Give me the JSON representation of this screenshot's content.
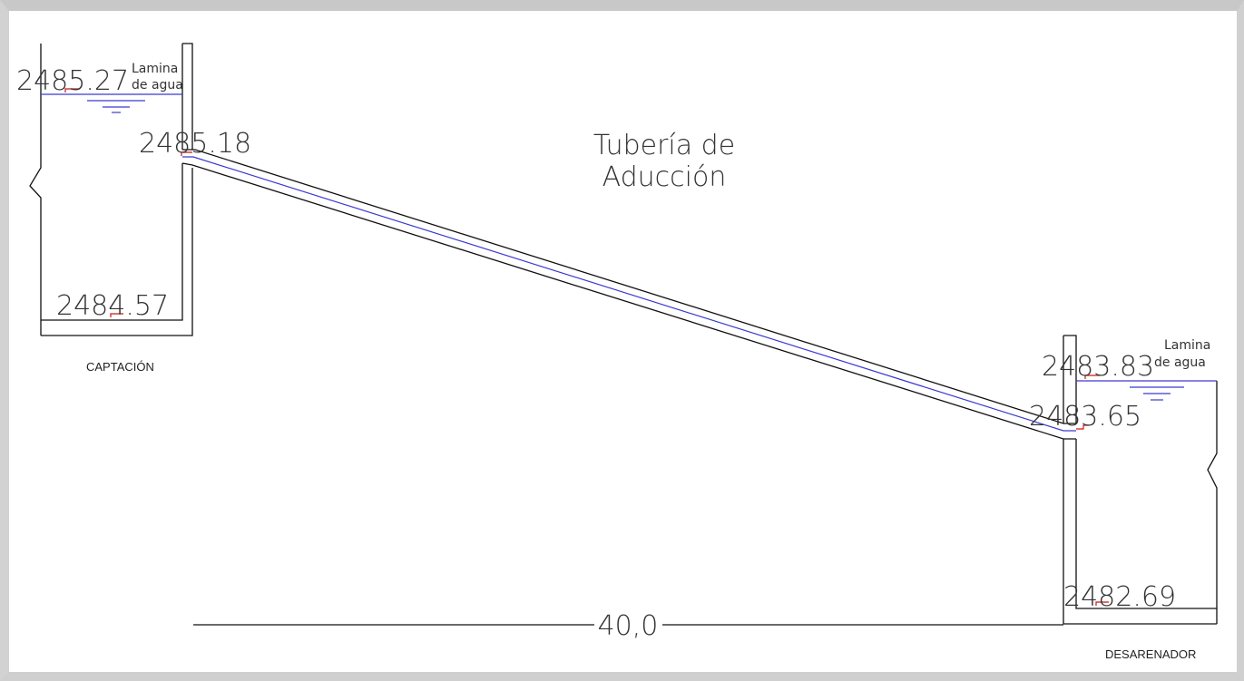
{
  "drawing": {
    "title_line1": "Tubería de",
    "title_line2": "Aducción",
    "captacion": {
      "label": "CAPTACIÓN",
      "water_level": "2485.27",
      "water_label_line1": "Lamina",
      "water_label_line2": "de agua",
      "pipe_invert": "2485.18",
      "bottom": "2484.57"
    },
    "desarenador": {
      "label": "DESARENADOR",
      "water_level": "2483.83",
      "water_label_line1": "Lamina",
      "water_label_line2": "de agua",
      "pipe_invert": "2483.65",
      "bottom": "2482.69"
    },
    "length_dimension": "40,0"
  },
  "colors": {
    "line": "#111111",
    "water_line": "#3a3ad0",
    "marker": "#d01515"
  }
}
